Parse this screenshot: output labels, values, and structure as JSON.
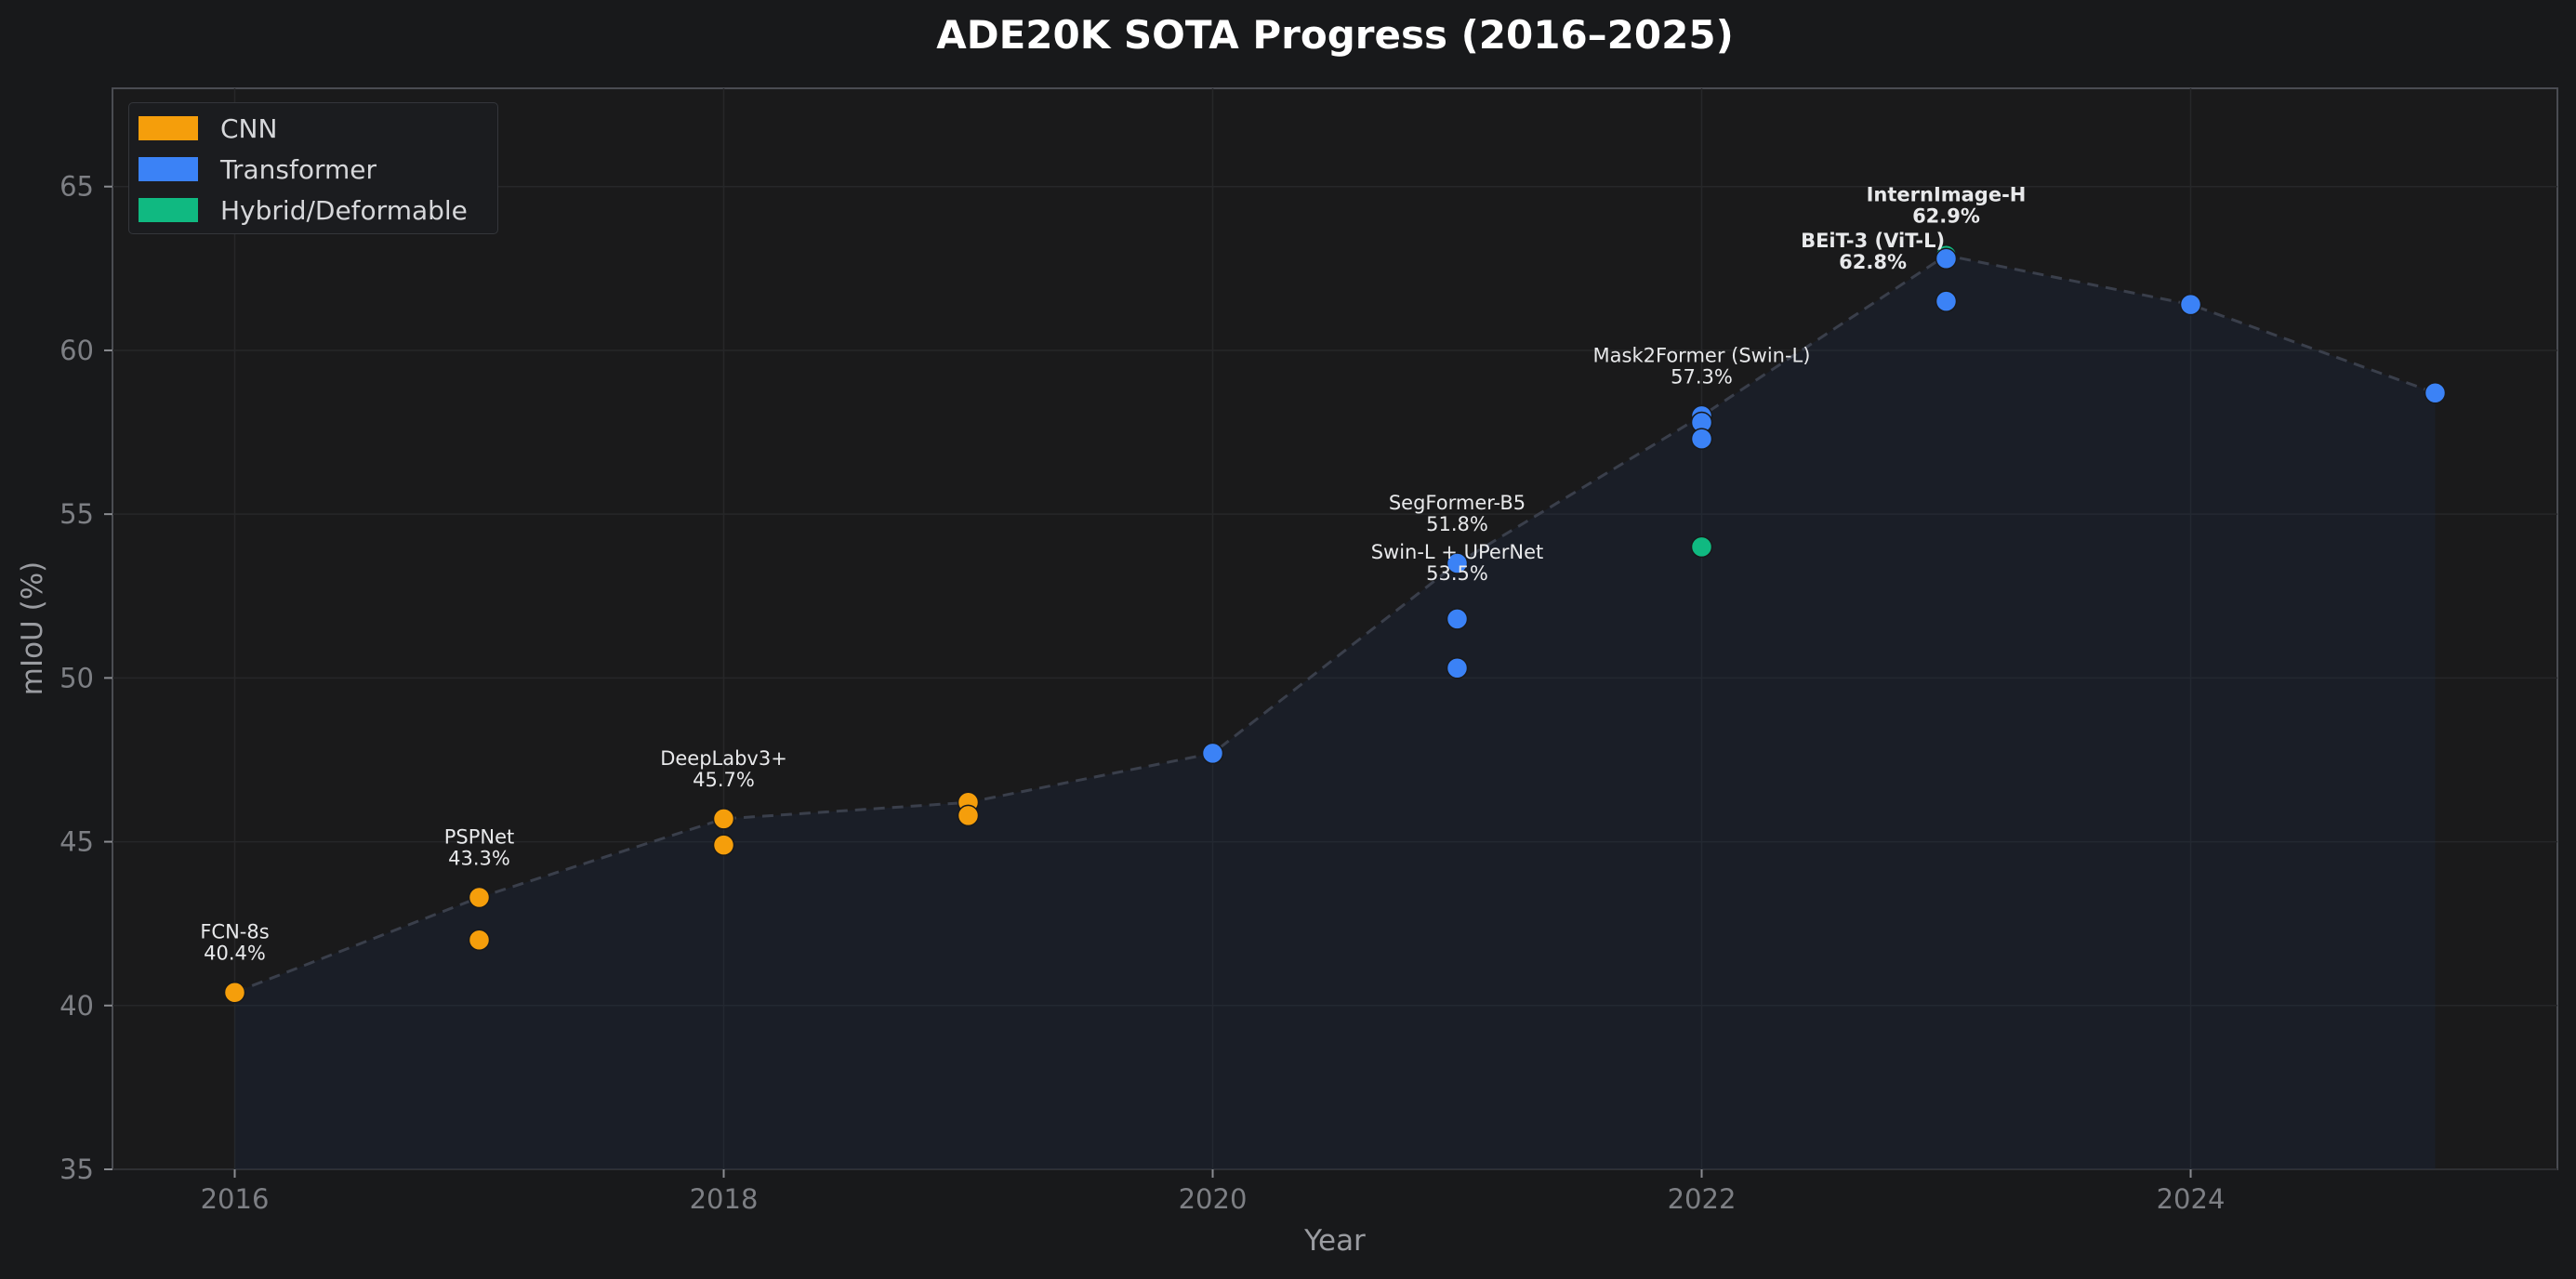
{
  "chart_data": {
    "type": "scatter",
    "title": "ADE20K SOTA Progress (2016–2025)",
    "xlabel": "Year",
    "ylabel": "mIoU (%)",
    "xlim": [
      2015.5,
      2025.5
    ],
    "ylim": [
      35,
      68
    ],
    "xticks": [
      2016,
      2018,
      2020,
      2022,
      2024
    ],
    "yticks": [
      35,
      40,
      45,
      50,
      55,
      60,
      65
    ],
    "grid": true,
    "legend_position": "top-left",
    "legend": [
      {
        "name": "CNN",
        "color": "#f59e0b"
      },
      {
        "name": "Transformer",
        "color": "#3b82f6"
      },
      {
        "name": "Hybrid/Deformable",
        "color": "#10b981"
      }
    ],
    "series": [
      {
        "name": "CNN",
        "color": "#f59e0b",
        "points": [
          {
            "x": 2016,
            "y": 40.4
          },
          {
            "x": 2017,
            "y": 43.3
          },
          {
            "x": 2017,
            "y": 42.0
          },
          {
            "x": 2018,
            "y": 45.7
          },
          {
            "x": 2018,
            "y": 44.9
          },
          {
            "x": 2019,
            "y": 46.2
          },
          {
            "x": 2019,
            "y": 45.8
          }
        ]
      },
      {
        "name": "Transformer",
        "color": "#3b82f6",
        "points": [
          {
            "x": 2020,
            "y": 47.7
          },
          {
            "x": 2021,
            "y": 53.5
          },
          {
            "x": 2021,
            "y": 51.8
          },
          {
            "x": 2021,
            "y": 50.3
          },
          {
            "x": 2022,
            "y": 58.0
          },
          {
            "x": 2022,
            "y": 57.8
          },
          {
            "x": 2022,
            "y": 57.3
          },
          {
            "x": 2023,
            "y": 62.8
          },
          {
            "x": 2023,
            "y": 61.5
          },
          {
            "x": 2024,
            "y": 61.4
          },
          {
            "x": 2025,
            "y": 58.7
          }
        ]
      },
      {
        "name": "Hybrid/Deformable",
        "color": "#10b981",
        "points": [
          {
            "x": 2022,
            "y": 54.0
          },
          {
            "x": 2023,
            "y": 62.9
          }
        ]
      }
    ],
    "sota_line": {
      "color": "#3a3f4b",
      "fill_color": "#1c2a4a",
      "points": [
        {
          "x": 2016,
          "y": 40.4
        },
        {
          "x": 2017,
          "y": 43.3
        },
        {
          "x": 2018,
          "y": 45.7
        },
        {
          "x": 2019,
          "y": 46.2
        },
        {
          "x": 2020,
          "y": 47.7
        },
        {
          "x": 2021,
          "y": 53.5
        },
        {
          "x": 2022,
          "y": 58.0
        },
        {
          "x": 2023,
          "y": 62.9
        },
        {
          "x": 2024,
          "y": 61.4
        },
        {
          "x": 2025,
          "y": 58.7
        }
      ]
    },
    "annotations": [
      {
        "x": 2016,
        "y": 40.4,
        "lines": [
          "FCN-8s",
          "40.4%"
        ],
        "bold": false
      },
      {
        "x": 2017,
        "y": 43.3,
        "lines": [
          "PSPNet",
          "43.3%"
        ],
        "bold": false
      },
      {
        "x": 2018,
        "y": 45.7,
        "lines": [
          "DeepLabv3+",
          "45.7%"
        ],
        "bold": false
      },
      {
        "x": 2021,
        "y": 53.5,
        "lines": [
          "SegFormer-B5",
          "51.8%"
        ],
        "bold": false
      },
      {
        "x": 2021,
        "y": 52.0,
        "lines": [
          "Swin-L + UPerNet",
          "53.5%"
        ],
        "bold": false
      },
      {
        "x": 2022,
        "y": 58.0,
        "lines": [
          "Mask2Former (Swin-L)",
          "57.3%"
        ],
        "bold": false
      },
      {
        "x": 2023,
        "y": 62.9,
        "lines": [
          "InternImage-H",
          "62.9%"
        ],
        "bold": true
      },
      {
        "x": 2022.7,
        "y": 61.5,
        "lines": [
          "BEiT-3 (ViT-L)",
          "62.8%"
        ],
        "bold": true
      }
    ]
  }
}
